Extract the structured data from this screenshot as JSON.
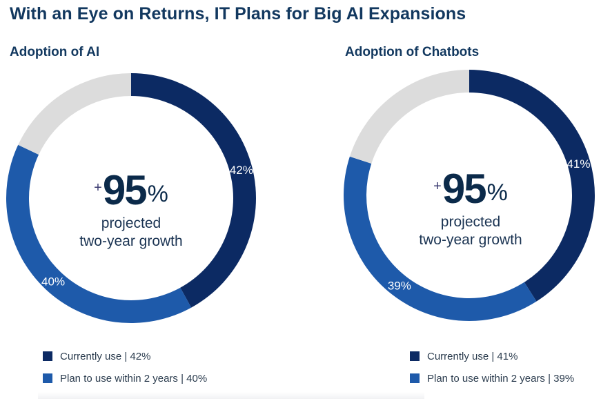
{
  "title": "With an Eye on Returns, IT Plans for Big AI Expansions",
  "colors": {
    "current": "#0c2a63",
    "plan": "#1e5aaa",
    "rest": "#dcdcdc"
  },
  "chart_data": [
    {
      "type": "pie",
      "title": "Adoption of AI",
      "slices": [
        {
          "name": "Currently use",
          "value": 42,
          "label": "42%"
        },
        {
          "name": "Plan to use within 2 years",
          "value": 40,
          "label": "40%"
        },
        {
          "name": "",
          "value": 18,
          "label": ""
        }
      ],
      "center": {
        "plus": "+",
        "number": "95",
        "percent": "%",
        "line1": "projected",
        "line2": "two-year growth"
      },
      "legend": [
        "Currently use | 42%",
        "Plan to use within 2 years | 40%"
      ]
    },
    {
      "type": "pie",
      "title": "Adoption of Chatbots",
      "slices": [
        {
          "name": "Currently use",
          "value": 41,
          "label": "41%"
        },
        {
          "name": "Plan to use within 2 years",
          "value": 39,
          "label": "39%"
        },
        {
          "name": "",
          "value": 20,
          "label": ""
        }
      ],
      "center": {
        "plus": "+",
        "number": "95",
        "percent": "%",
        "line1": "projected",
        "line2": "two-year growth"
      },
      "legend": [
        "Currently use | 41%",
        "Plan to use within 2 years | 39%"
      ]
    }
  ]
}
